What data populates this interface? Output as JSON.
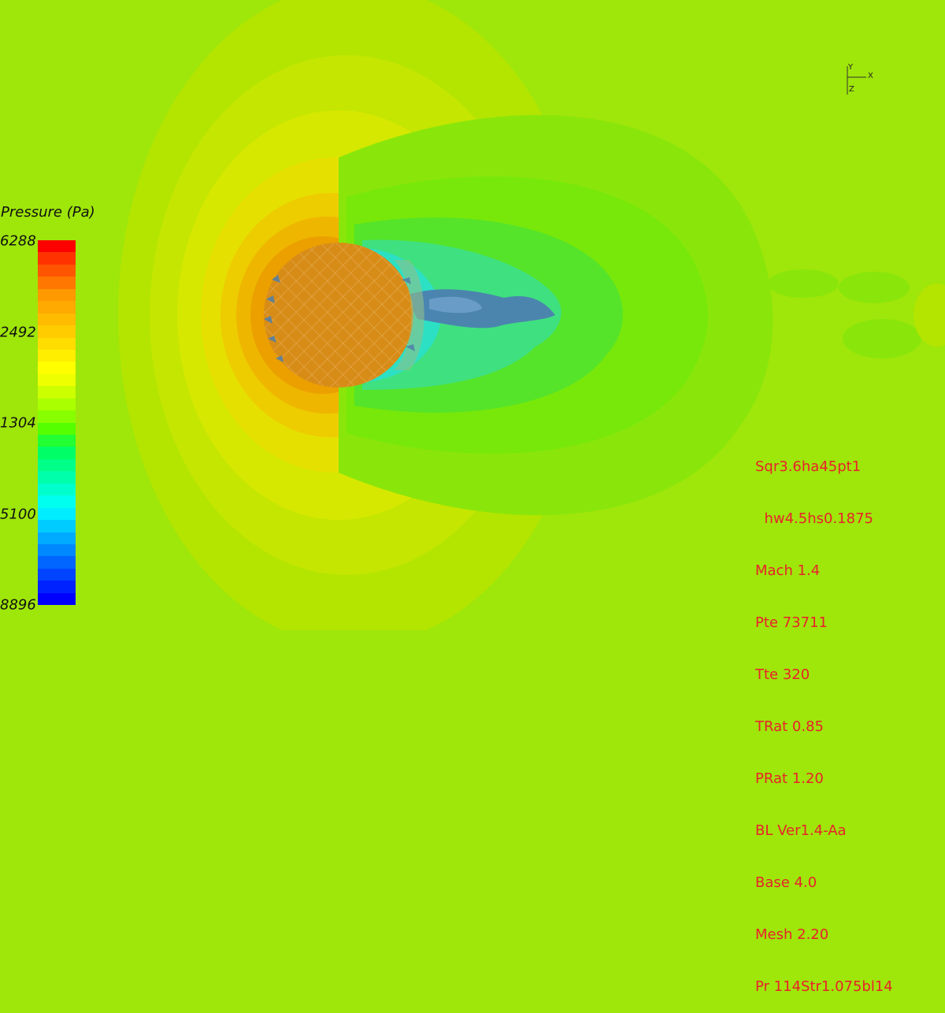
{
  "legend": {
    "title": "Pressure (Pa)",
    "ticks": [
      "6288",
      "2492",
      "1304",
      "5100",
      "8896"
    ],
    "colors": [
      "#ff0000",
      "#ff3300",
      "#ff5500",
      "#ff7700",
      "#ff9900",
      "#ffaa00",
      "#ffbb00",
      "#ffcc00",
      "#ffdd00",
      "#ffee00",
      "#ffff00",
      "#eeff00",
      "#ccff00",
      "#aaff00",
      "#88ff00",
      "#55ff00",
      "#22ff33",
      "#00ff66",
      "#00ff88",
      "#00ffaa",
      "#00ffcc",
      "#00ffee",
      "#00eeff",
      "#00ccff",
      "#00aaff",
      "#0088ff",
      "#0066ff",
      "#0044ff",
      "#0022ff",
      "#0000ff"
    ]
  },
  "axes": {
    "x_label": "X",
    "y_label": "Y",
    "z_label": "Z"
  },
  "params": [
    "Sqr3.6ha45pt1",
    "  hw4.5hs0.1875",
    "Mach 1.4",
    "Pte 73711",
    "Tte 320",
    "TRat 0.85",
    "PRat 1.20",
    "BL Ver1.4-Aa",
    "Base 4.0",
    "Mesh 2.20",
    "Pr 114Str1.075bl14"
  ]
}
